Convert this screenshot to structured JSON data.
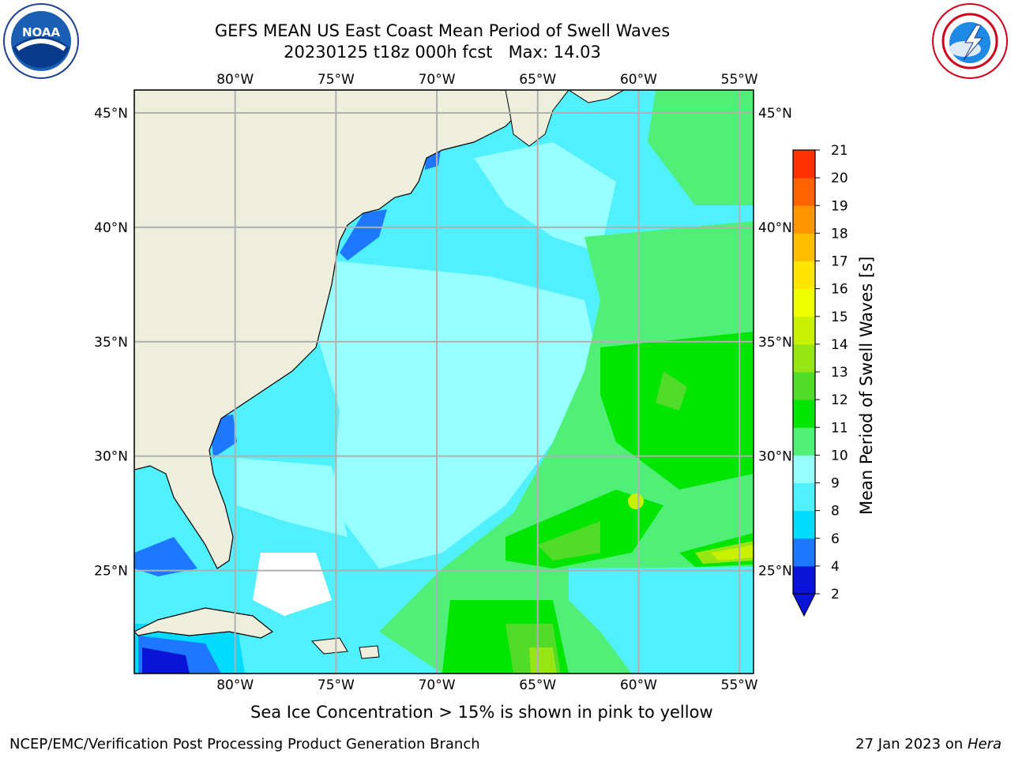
{
  "header": {
    "title_line1": "GEFS MEAN US East Coast Mean Period of Swell Waves",
    "title_line2": "20230125 t18z 000h fcst   Max: 14.03"
  },
  "logos": {
    "left": "noaa-logo",
    "left_text": "NOAA",
    "right": "nws-logo"
  },
  "map": {
    "lon_ticks": [
      "80°W",
      "75°W",
      "70°W",
      "65°W",
      "60°W",
      "55°W"
    ],
    "lon_values": [
      -80,
      -75,
      -70,
      -65,
      -60,
      -55
    ],
    "lat_ticks": [
      "45°N",
      "40°N",
      "35°N",
      "30°N",
      "25°N"
    ],
    "lat_values": [
      45,
      40,
      35,
      30,
      25
    ],
    "lon_range": [
      -85,
      -54.3
    ],
    "lat_range": [
      20.5,
      46
    ],
    "colors": {
      "land": "#eeeedd",
      "grid": "#b0b0b0",
      "coast": "#000000"
    }
  },
  "colorbar": {
    "label": "Mean Period of Swell Waves [s]",
    "ticks": [
      "2",
      "4",
      "6",
      "8",
      "9",
      "10",
      "11",
      "12",
      "13",
      "14",
      "15",
      "16",
      "17",
      "18",
      "19",
      "20",
      "21"
    ],
    "colors": [
      "#0a14d9",
      "#1e78ff",
      "#00dcff",
      "#50f0ff",
      "#96ffff",
      "#50f078",
      "#00e600",
      "#50dc28",
      "#96e614",
      "#c8f000",
      "#f0ff00",
      "#ffe600",
      "#ffbe00",
      "#ff9600",
      "#ff6400",
      "#ff3200"
    ],
    "extend_color": "#0a14d9"
  },
  "caption": "Sea Ice Concentration > 15% is shown in pink to yellow",
  "footer": {
    "left": "NCEP/EMC/Verification Post Processing Product Generation Branch",
    "right_date": "27 Jan 2023 on ",
    "right_host": "Hera"
  }
}
